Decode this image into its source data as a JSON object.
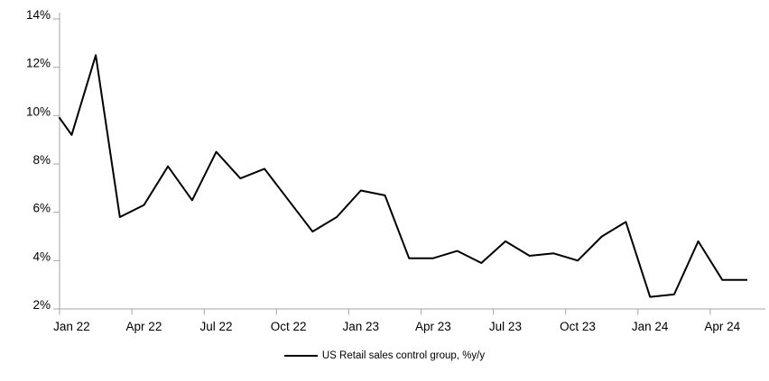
{
  "chart_data": {
    "type": "line",
    "title": "",
    "unit": "%",
    "x_categories": [
      "Jan 22",
      "Feb 22",
      "Mar 22",
      "Apr 22",
      "May 22",
      "Jun 22",
      "Jul 22",
      "Aug 22",
      "Sep 22",
      "Oct 22",
      "Nov 22",
      "Dec 22",
      "Jan 23",
      "Feb 23",
      "Mar 23",
      "Apr 23",
      "May 23",
      "Jun 23",
      "Jul 23",
      "Aug 23",
      "Sep 23",
      "Oct 23",
      "Nov 23",
      "Dec 23",
      "Jan 24",
      "Feb 24",
      "Mar 24",
      "Apr 24",
      "May 24"
    ],
    "series": [
      {
        "name": "US Retail sales control group, %y/y",
        "color": "#000000",
        "values": [
          9.2,
          12.5,
          5.8,
          6.3,
          7.9,
          6.5,
          8.5,
          7.4,
          7.8,
          6.5,
          5.2,
          5.8,
          6.9,
          6.7,
          4.1,
          4.1,
          4.4,
          3.9,
          4.8,
          4.2,
          4.3,
          4.0,
          5.0,
          5.6,
          2.5,
          2.6,
          4.8,
          3.2,
          3.2
        ],
        "visible_start_at_axis_pct": 9.9
      }
    ],
    "x_tick_labels": [
      "Jan 22",
      "Apr 22",
      "Jul 22",
      "Oct 22",
      "Jan 23",
      "Apr 23",
      "Jul 23",
      "Oct 23",
      "Jan 24",
      "Apr 24"
    ],
    "x_tick_interval_months": 3,
    "y_tick_labels": [
      "2%",
      "4%",
      "6%",
      "8%",
      "10%",
      "12%",
      "14%"
    ],
    "ylim": [
      2,
      14
    ],
    "y_step": 2,
    "grid": "none",
    "legend_position": "bottom-center",
    "axis_color": "#a6a6a6",
    "text_color": "#000000",
    "background": "#ffffff"
  }
}
